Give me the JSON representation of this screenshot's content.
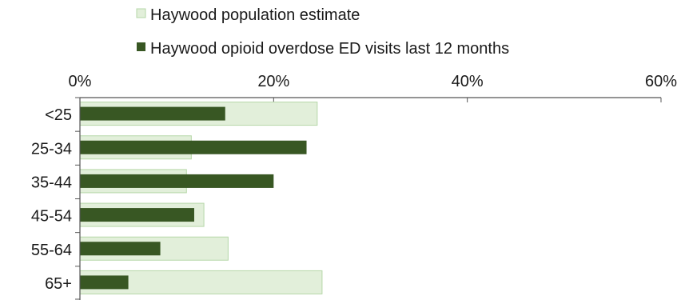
{
  "chart_data": {
    "type": "bar",
    "orientation": "horizontal",
    "categories": [
      "<25",
      "25-34",
      "35-44",
      "45-54",
      "55-64",
      "65+"
    ],
    "series": [
      {
        "name": "Haywood population estimate",
        "values": [
          24.5,
          11.5,
          11.0,
          12.8,
          15.3,
          25.0
        ],
        "color": "#e2efda",
        "border": "#b6d7a8"
      },
      {
        "name": "Haywood opioid overdose ED visits last 12 months",
        "values": [
          15.0,
          23.4,
          20.0,
          11.8,
          8.3,
          5.0
        ],
        "color": "#385723"
      }
    ],
    "xlim": [
      0,
      60
    ],
    "x_ticks": [
      0,
      20,
      40,
      60
    ],
    "x_tick_labels": [
      "0%",
      "20%",
      "40%",
      "60%"
    ],
    "x_axis_position": "top",
    "legend_position": "top",
    "grid": false
  }
}
